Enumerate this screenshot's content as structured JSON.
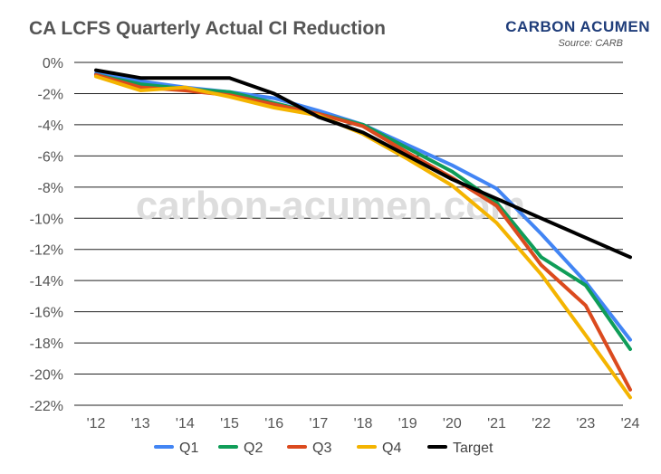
{
  "header": {
    "title": "CA LCFS Quarterly Actual CI Reduction",
    "brand": "CARBON ACUMEN",
    "source": "Source: CARB"
  },
  "watermark": "carbon-acumen.com",
  "chart_data": {
    "type": "line",
    "title": "CA LCFS Quarterly Actual CI Reduction",
    "xlabel": "",
    "ylabel": "",
    "categories": [
      "'12",
      "'13",
      "'14",
      "'15",
      "'16",
      "'17",
      "'18",
      "'19",
      "'20",
      "'21",
      "'22",
      "'23",
      "'24"
    ],
    "y_ticks": [
      0,
      -2,
      -4,
      -6,
      -8,
      -10,
      -12,
      -14,
      -16,
      -18,
      -20,
      -22
    ],
    "y_tick_labels": [
      "0%",
      "-2%",
      "-4%",
      "-6%",
      "-8%",
      "-10%",
      "-12%",
      "-14%",
      "-16%",
      "-18%",
      "-20%",
      "-22%"
    ],
    "ylim": [
      -22,
      0
    ],
    "grid": true,
    "legend_position": "bottom",
    "series": [
      {
        "name": "Q1",
        "color": "#4285f4",
        "values": [
          -0.7,
          -1.2,
          -1.6,
          -1.9,
          -2.3,
          -3.1,
          -4.0,
          -5.3,
          -6.6,
          -8.1,
          -11.0,
          -14.1,
          -17.8
        ]
      },
      {
        "name": "Q2",
        "color": "#0f9d58",
        "values": [
          -0.8,
          -1.4,
          -1.7,
          -1.9,
          -2.6,
          -3.3,
          -4.0,
          -5.5,
          -7.0,
          -9.0,
          -12.5,
          -14.3,
          -18.4
        ]
      },
      {
        "name": "Q3",
        "color": "#db4a1e",
        "values": [
          -0.8,
          -1.6,
          -1.8,
          -2.1,
          -2.7,
          -3.3,
          -4.1,
          -5.8,
          -7.4,
          -9.2,
          -13.0,
          -15.6,
          -21.0
        ]
      },
      {
        "name": "Q4",
        "color": "#f4b400",
        "values": [
          -0.9,
          -1.8,
          -1.6,
          -2.2,
          -2.9,
          -3.4,
          -4.6,
          -6.2,
          -7.9,
          -10.3,
          -13.6,
          -17.5,
          -21.5
        ]
      },
      {
        "name": "Target",
        "color": "#000000",
        "values": [
          -0.5,
          -1.0,
          -1.0,
          -1.0,
          -2.0,
          -3.5,
          -4.5,
          -6.0,
          -7.5,
          -8.75,
          -10.0,
          -11.25,
          -12.5
        ]
      }
    ]
  }
}
